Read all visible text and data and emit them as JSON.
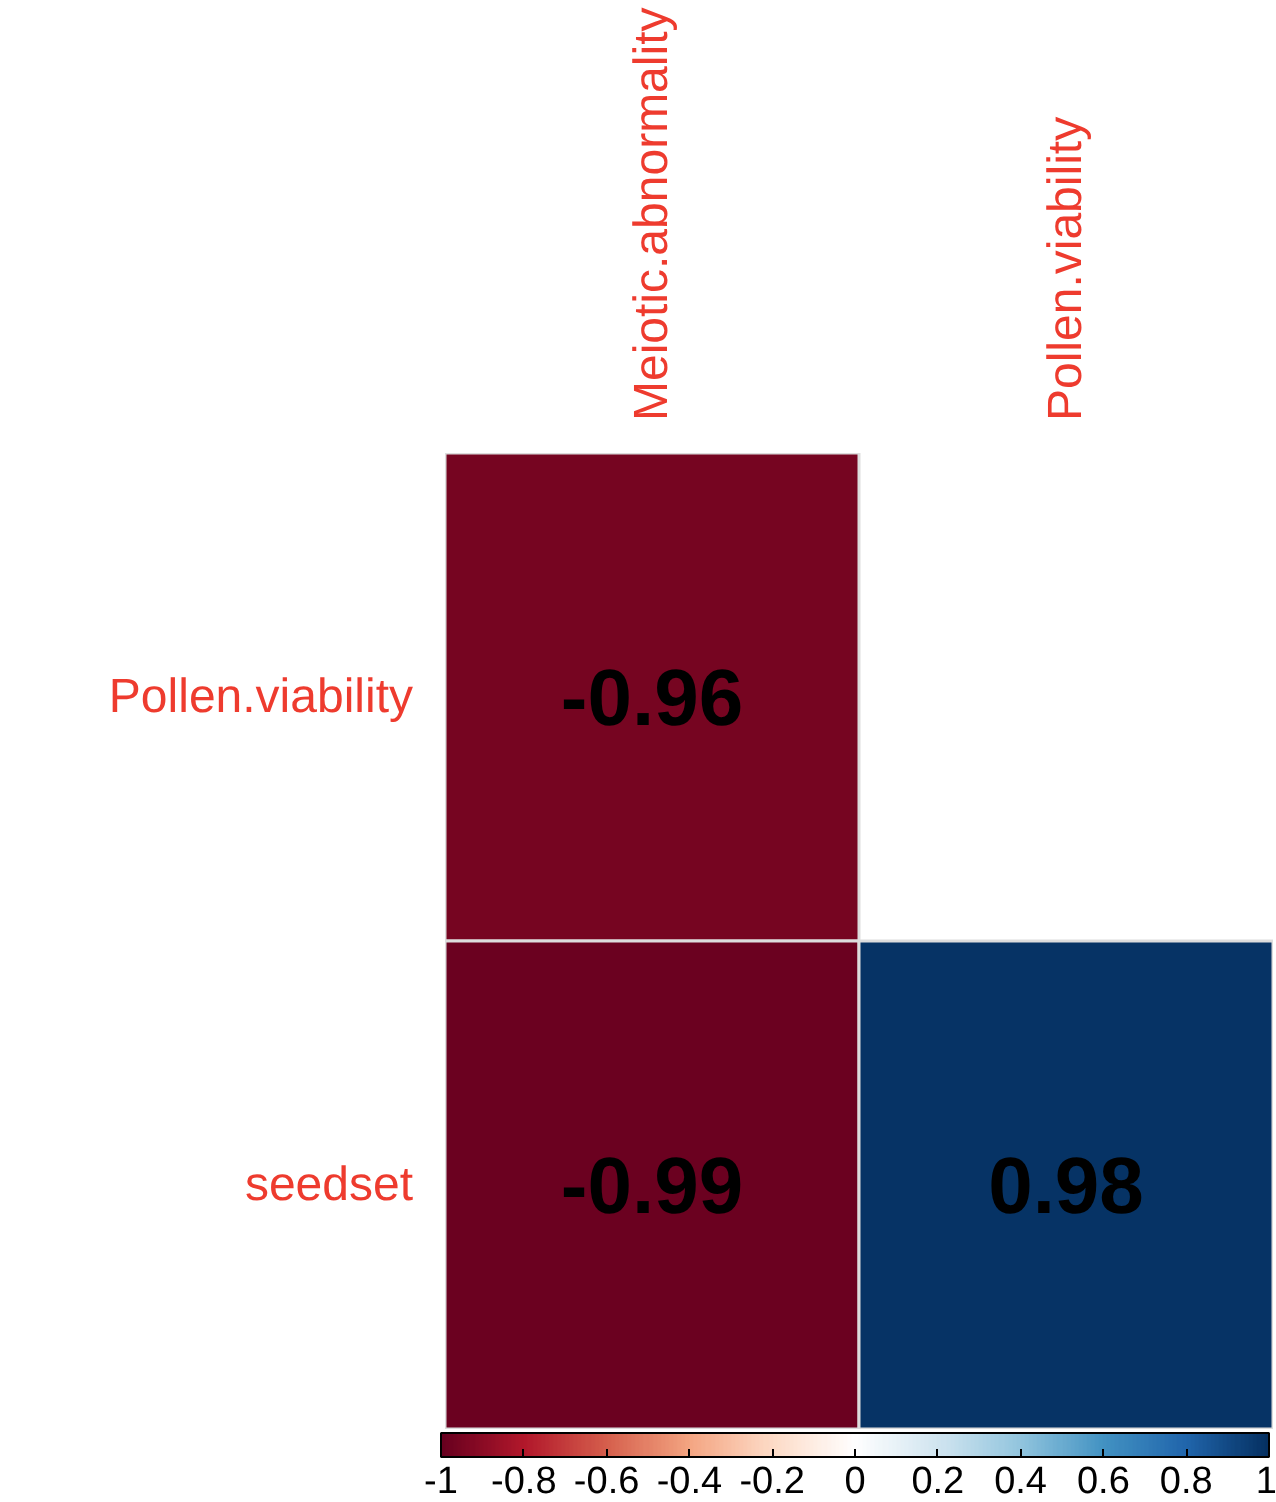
{
  "chart_data": {
    "type": "heatmap",
    "categories": [
      "Meiotic.abnormality",
      "Pollen.viability"
    ],
    "y_categories": [
      "Pollen.viability",
      "seedset"
    ],
    "cells": [
      [
        -0.96,
        null
      ],
      [
        -0.99,
        0.98
      ]
    ],
    "data_labels": true,
    "clim": [
      -1,
      1
    ],
    "cticks": [
      -1,
      -0.8,
      -0.6,
      -0.4,
      -0.2,
      0,
      0.2,
      0.4,
      0.6,
      0.8,
      1
    ]
  }
}
